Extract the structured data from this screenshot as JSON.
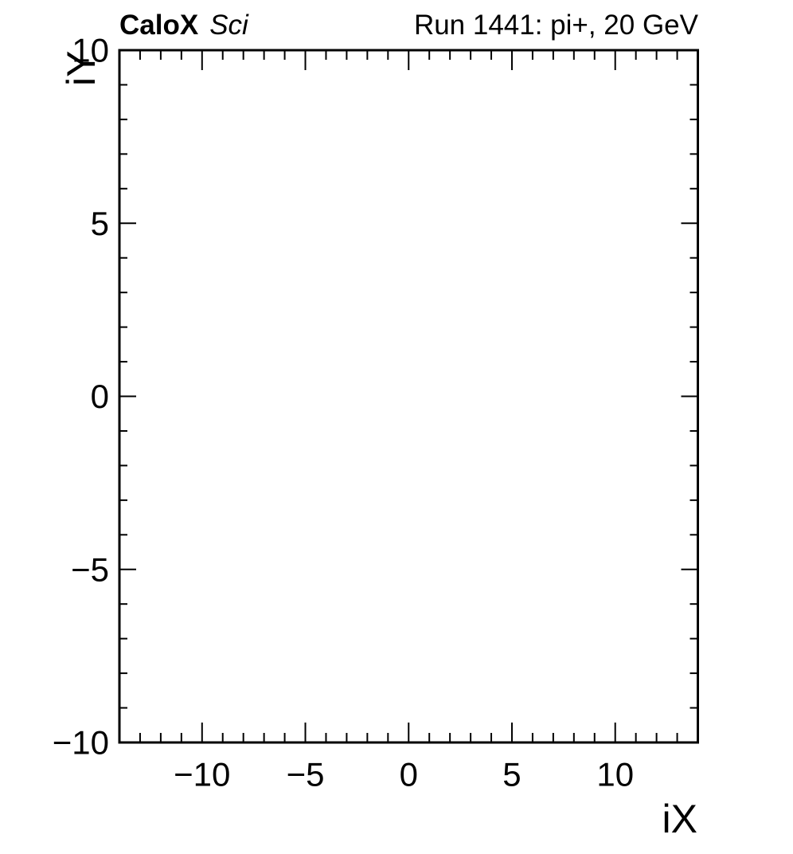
{
  "page": {
    "background": "#ffffff",
    "foreground": "#000000"
  },
  "header": {
    "experiment": "CaloX",
    "qualifier": "Sci",
    "run_label": "Run 1441: pi+, 20 GeV"
  },
  "chart_data": {
    "type": "heatmap",
    "title": "Run 1441: pi+, 20 GeV",
    "subtitle": "CaloX Sci",
    "xlabel": "iX",
    "ylabel": "iY",
    "xlim": [
      -14,
      14
    ],
    "ylim": [
      -10,
      10
    ],
    "x_major_ticks": [
      -10,
      -5,
      0,
      5,
      10
    ],
    "y_major_ticks": [
      -10,
      -5,
      0,
      5,
      10
    ],
    "x_minor_tick_step": 1,
    "y_minor_tick_step": 1,
    "ticks_mirrored_all_sides": true,
    "grid": false,
    "legend": false,
    "axis_color": "#000000",
    "series": [],
    "note": "empty frame - no bin content drawn"
  }
}
